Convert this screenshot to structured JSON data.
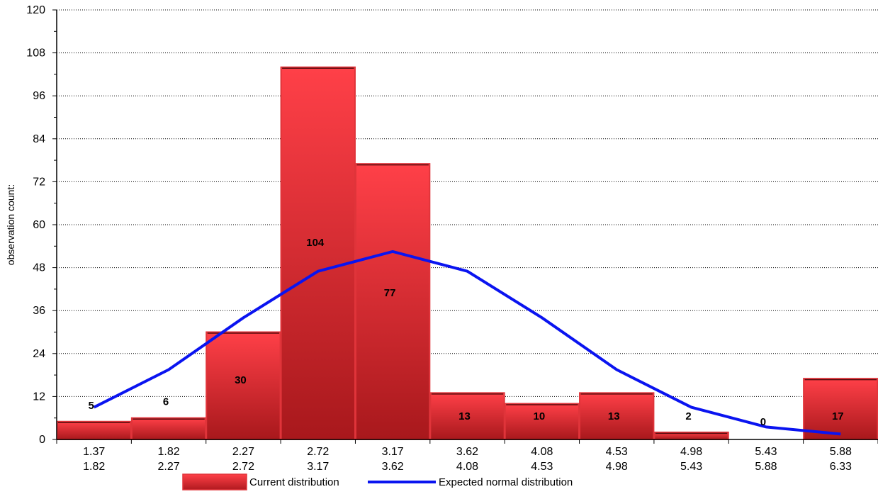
{
  "chart_data": {
    "type": "bar",
    "ylabel": "observation count:",
    "ylim": [
      0,
      120
    ],
    "y_ticks": [
      0,
      12,
      24,
      36,
      48,
      60,
      72,
      84,
      96,
      108,
      120
    ],
    "categories": [
      {
        "from": "1.37",
        "to": "1.82"
      },
      {
        "from": "1.82",
        "to": "2.27"
      },
      {
        "from": "2.27",
        "to": "2.72"
      },
      {
        "from": "2.72",
        "to": "3.17"
      },
      {
        "from": "3.17",
        "to": "3.62"
      },
      {
        "from": "3.62",
        "to": "4.08"
      },
      {
        "from": "4.08",
        "to": "4.53"
      },
      {
        "from": "4.53",
        "to": "4.98"
      },
      {
        "from": "4.98",
        "to": "5.43"
      },
      {
        "from": "5.43",
        "to": "5.88"
      },
      {
        "from": "5.88",
        "to": "6.33"
      }
    ],
    "series": [
      {
        "name": "Current distribution",
        "kind": "bar",
        "values": [
          5,
          6,
          30,
          104,
          77,
          13,
          10,
          13,
          2,
          0,
          17
        ],
        "color": "#e8252b"
      },
      {
        "name": "Expected normal distribution",
        "kind": "line",
        "values": [
          9,
          19.5,
          34,
          47,
          52.5,
          47,
          34,
          19.5,
          9,
          3.5,
          1.5
        ],
        "color": "#0a14f0"
      }
    ],
    "grid": "horizontal dotted",
    "legend": "bottom-center"
  }
}
